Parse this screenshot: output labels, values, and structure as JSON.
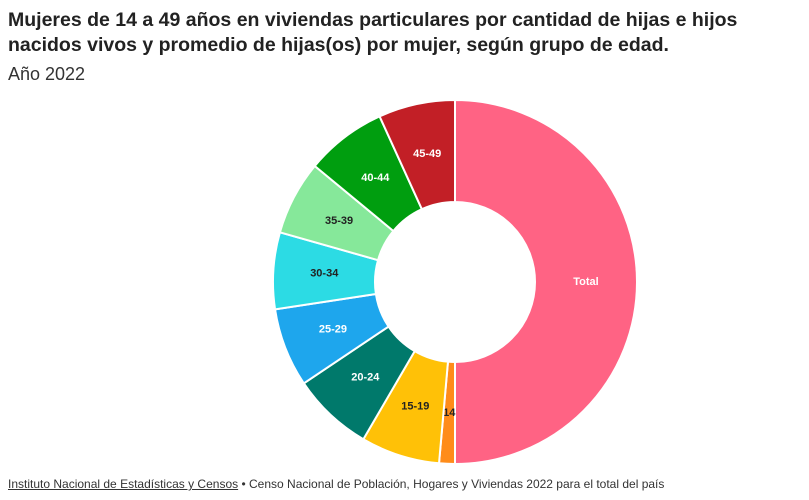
{
  "header": {
    "title": "Mujeres de 14 a 49 años en viviendas particulares por cantidad de hijas e hijos nacidos vivos y promedio de hijas(os) por mujer, según grupo de edad.",
    "subtitle": "Año 2022"
  },
  "footer": {
    "source_link": "Instituto Nacional de Estadísticas y Censos",
    "separator": " • ",
    "source_note": "Censo Nacional de Población, Hogares y Viviendas 2022 para el total del país"
  },
  "chart_data": {
    "type": "pie",
    "variant": "donut",
    "start": "top, clockwise",
    "slices": [
      {
        "label": "Total",
        "value": 50.0,
        "color": "#ff6384",
        "label_color": "#ffffff"
      },
      {
        "label": "14",
        "value": 1.4,
        "color": "#ff8c1a",
        "label_color": "#222222"
      },
      {
        "label": "15-19",
        "value": 7.0,
        "color": "#ffc107",
        "label_color": "#222222"
      },
      {
        "label": "20-24",
        "value": 7.2,
        "color": "#00796b",
        "label_color": "#ffffff"
      },
      {
        "label": "25-29",
        "value": 7.0,
        "color": "#1ea6ed",
        "label_color": "#ffffff"
      },
      {
        "label": "30-34",
        "value": 6.8,
        "color": "#2cdbe4",
        "label_color": "#222222"
      },
      {
        "label": "35-39",
        "value": 6.6,
        "color": "#86e89a",
        "label_color": "#222222"
      },
      {
        "label": "40-44",
        "value": 7.2,
        "color": "#009e0f",
        "label_color": "#ffffff"
      },
      {
        "label": "45-49",
        "value": 6.8,
        "color": "#c21f26",
        "label_color": "#ffffff"
      }
    ]
  }
}
